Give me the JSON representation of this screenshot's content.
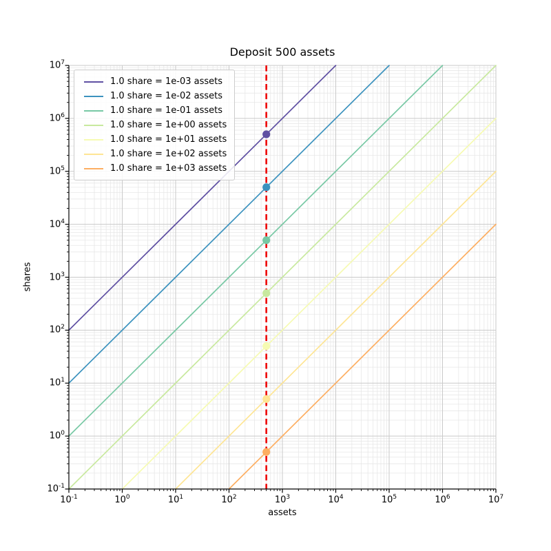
{
  "chart": {
    "title": "Deposit 500 assets",
    "xlabel": "assets",
    "ylabel": "shares"
  },
  "chart_data": {
    "type": "line",
    "title": "Deposit 500 assets",
    "xlabel": "assets",
    "ylabel": "shares",
    "x_scale": "log",
    "y_scale": "log",
    "x_range": [
      0.1,
      10000000
    ],
    "y_range": [
      0.1,
      10000000
    ],
    "x_tick_exponents": [
      -1,
      0,
      1,
      2,
      3,
      4,
      5,
      6,
      7
    ],
    "y_tick_exponents": [
      -1,
      0,
      1,
      2,
      3,
      4,
      5,
      6,
      7
    ],
    "grid": "major+minor",
    "legend_position": "upper left",
    "deposit_assets": 500,
    "vline": {
      "x": 500,
      "color": "#ee0000",
      "style": "dashed"
    },
    "series": [
      {
        "label": "1.0 share = 1e-03 assets",
        "rate_assets_per_share": 0.001,
        "color": "#5e4fa2",
        "point": {
          "x": 500,
          "y": 500000
        }
      },
      {
        "label": "1.0 share = 1e-02 assets",
        "rate_assets_per_share": 0.01,
        "color": "#3b92be",
        "point": {
          "x": 500,
          "y": 50000
        }
      },
      {
        "label": "1.0 share = 1e-01 assets",
        "rate_assets_per_share": 0.1,
        "color": "#77c8a4",
        "point": {
          "x": 500,
          "y": 5000
        }
      },
      {
        "label": "1.0 share = 1e+00 assets",
        "rate_assets_per_share": 1,
        "color": "#c8e99e",
        "point": {
          "x": 500,
          "y": 500
        }
      },
      {
        "label": "1.0 share = 1e+01 assets",
        "rate_assets_per_share": 10,
        "color": "#f6fbb2",
        "point": {
          "x": 500,
          "y": 50
        }
      },
      {
        "label": "1.0 share = 1e+02 assets",
        "rate_assets_per_share": 100,
        "color": "#fee594",
        "point": {
          "x": 500,
          "y": 5
        }
      },
      {
        "label": "1.0 share = 1e+03 assets",
        "rate_assets_per_share": 1000,
        "color": "#fdae61",
        "point": {
          "x": 500,
          "y": 0.5
        }
      }
    ],
    "style": {
      "major_grid_color": "#c9c9c9",
      "minor_grid_color": "#e7e7e7",
      "spine_color": "#000000",
      "background": "#ffffff"
    }
  }
}
